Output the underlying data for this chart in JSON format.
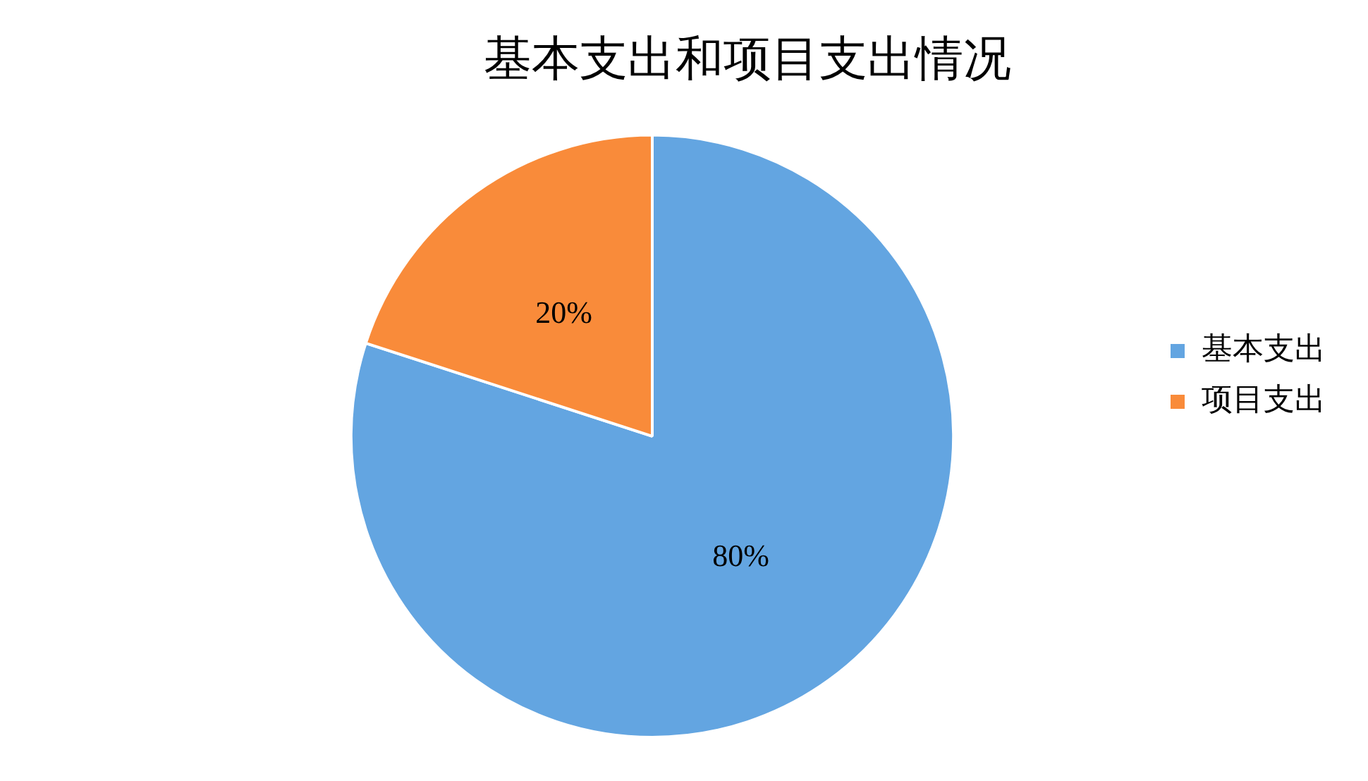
{
  "chart_data": {
    "type": "pie",
    "title": "基本支出和项目支出情况",
    "categories": [
      "基本支出",
      "项目支出"
    ],
    "values": [
      80,
      20
    ],
    "colors": [
      "#63a5e1",
      "#f98b3a"
    ],
    "value_labels": [
      "80%",
      "20%"
    ],
    "legend": "right"
  }
}
